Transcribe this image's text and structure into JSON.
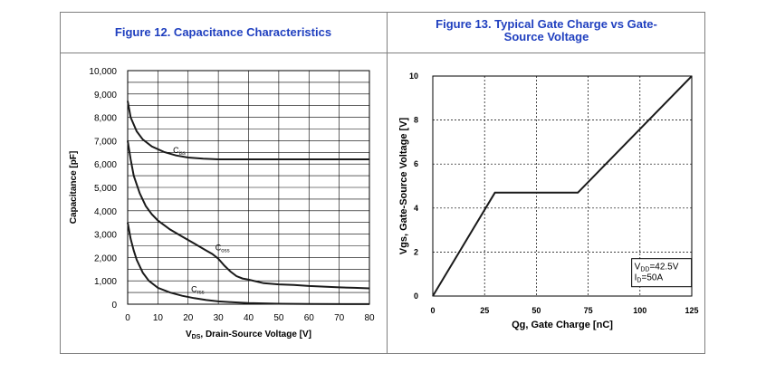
{
  "chart_data": [
    {
      "type": "line",
      "title": "Figure 12. Capacitance Characteristics",
      "xlabel_main": "V",
      "xlabel_sub": "DS",
      "xlabel_rest": ", Drain-Source Voltage [V]",
      "ylabel": "Capacitance [pF]",
      "xlim": [
        0,
        80
      ],
      "ylim": [
        0,
        10000
      ],
      "x_ticks": [
        "0",
        "10",
        "20",
        "30",
        "40",
        "50",
        "60",
        "70",
        "80"
      ],
      "y_ticks": [
        "0",
        "1,000",
        "2,000",
        "3,000",
        "4,000",
        "5,000",
        "6,000",
        "7,000",
        "8,000",
        "9,000",
        "10,000"
      ],
      "grid": true,
      "series": [
        {
          "name": "C",
          "sub": "iss",
          "points": [
            [
              0,
              8700
            ],
            [
              1,
              8000
            ],
            [
              3,
              7400
            ],
            [
              5,
              7050
            ],
            [
              8,
              6750
            ],
            [
              12,
              6520
            ],
            [
              16,
              6370
            ],
            [
              20,
              6280
            ],
            [
              25,
              6230
            ],
            [
              30,
              6200
            ],
            [
              40,
              6200
            ],
            [
              60,
              6200
            ],
            [
              80,
              6200
            ]
          ]
        },
        {
          "name": "C",
          "sub": "oss",
          "points": [
            [
              0,
              7000
            ],
            [
              1,
              6200
            ],
            [
              2,
              5500
            ],
            [
              4,
              4750
            ],
            [
              6,
              4200
            ],
            [
              8,
              3850
            ],
            [
              10,
              3580
            ],
            [
              14,
              3200
            ],
            [
              18,
              2900
            ],
            [
              22,
              2600
            ],
            [
              26,
              2300
            ],
            [
              28,
              2150
            ],
            [
              30,
              1950
            ],
            [
              32,
              1650
            ],
            [
              34,
              1400
            ],
            [
              36,
              1200
            ],
            [
              38,
              1100
            ],
            [
              40,
              1050
            ],
            [
              45,
              900
            ],
            [
              50,
              850
            ],
            [
              55,
              820
            ],
            [
              60,
              780
            ],
            [
              65,
              750
            ],
            [
              70,
              720
            ],
            [
              75,
              700
            ],
            [
              80,
              680
            ]
          ]
        },
        {
          "name": "C",
          "sub": "rss",
          "points": [
            [
              0,
              3500
            ],
            [
              1,
              2800
            ],
            [
              2,
              2300
            ],
            [
              3,
              1900
            ],
            [
              5,
              1350
            ],
            [
              7,
              1000
            ],
            [
              10,
              700
            ],
            [
              14,
              500
            ],
            [
              18,
              360
            ],
            [
              22,
              260
            ],
            [
              26,
              180
            ],
            [
              30,
              120
            ],
            [
              35,
              80
            ],
            [
              40,
              50
            ],
            [
              50,
              20
            ],
            [
              60,
              10
            ],
            [
              80,
              5
            ]
          ]
        }
      ]
    },
    {
      "type": "line",
      "title": "Figure 13. Typical Gate Charge vs Gate-Source Voltage",
      "xlabel": "Qg, Gate Charge [nC]",
      "ylabel": "Vgs, Gate-Source Voltage [V]",
      "xlim": [
        0,
        125
      ],
      "ylim": [
        0,
        10
      ],
      "x_ticks": [
        "0",
        "25",
        "50",
        "75",
        "100",
        "125"
      ],
      "y_ticks": [
        "0",
        "2",
        "4",
        "6",
        "8",
        "10"
      ],
      "grid": "dashed",
      "series": [
        {
          "points": [
            [
              0,
              0
            ],
            [
              30,
              4.7
            ],
            [
              70,
              4.7
            ],
            [
              125,
              10
            ]
          ]
        }
      ],
      "annotation": [
        {
          "main": "V",
          "sub": "DD",
          "rest": "=42.5V"
        },
        {
          "main": "I",
          "sub": "D",
          "rest": "=50A"
        }
      ]
    }
  ]
}
